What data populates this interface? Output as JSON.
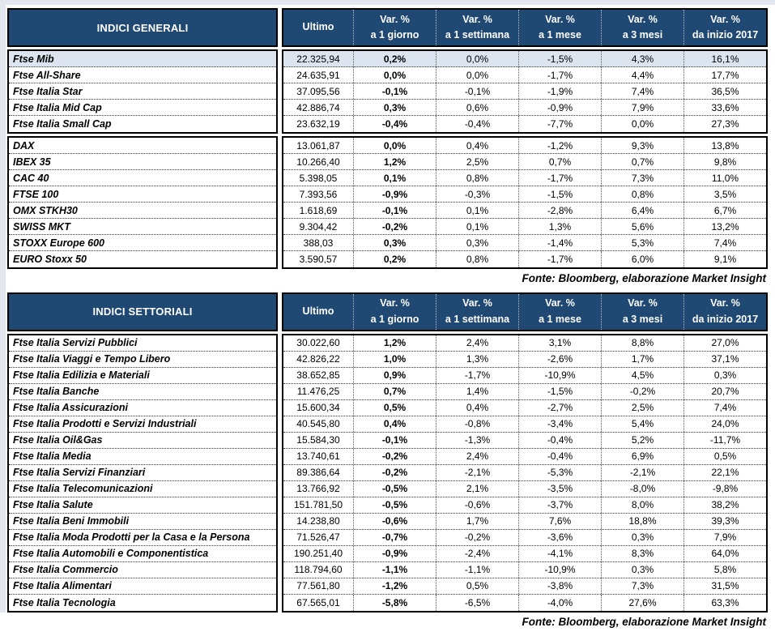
{
  "source_note": "Fonte: Bloomberg, elaborazione Market Insight",
  "columns": {
    "ultimo": "Ultimo",
    "var_prefix": "Var. %",
    "periods": [
      "a 1 giorno",
      "a 1 settimana",
      "a 1 mese",
      "a 3 mesi",
      "da inizio 2017"
    ]
  },
  "colors": {
    "header_bg": "#1F4872",
    "highlight_row": "#DCE4F0"
  },
  "tables": [
    {
      "title": "INDICI GENERALI",
      "groups": [
        {
          "rows": [
            {
              "name": "Ftse Mib",
              "highlight": true,
              "values": [
                "22.325,94",
                "0,2%",
                "0,0%",
                "-1,5%",
                "4,3%",
                "16,1%"
              ]
            },
            {
              "name": "Ftse All-Share",
              "values": [
                "24.635,91",
                "0,0%",
                "0,0%",
                "-1,7%",
                "4,4%",
                "17,7%"
              ]
            },
            {
              "name": "Ftse Italia Star",
              "values": [
                "37.095,56",
                "-0,1%",
                "-0,1%",
                "-1,9%",
                "7,4%",
                "36,5%"
              ]
            },
            {
              "name": "Ftse Italia Mid Cap",
              "values": [
                "42.886,74",
                "0,3%",
                "0,6%",
                "-0,9%",
                "7,9%",
                "33,6%"
              ]
            },
            {
              "name": "Ftse Italia Small Cap",
              "values": [
                "23.632,19",
                "-0,4%",
                "-0,4%",
                "-7,7%",
                "0,0%",
                "27,3%"
              ]
            }
          ]
        },
        {
          "rows": [
            {
              "name": "DAX",
              "values": [
                "13.061,87",
                "0,0%",
                "0,4%",
                "-1,2%",
                "9,3%",
                "13,8%"
              ]
            },
            {
              "name": "IBEX 35",
              "values": [
                "10.266,40",
                "1,2%",
                "2,5%",
                "0,7%",
                "0,7%",
                "9,8%"
              ]
            },
            {
              "name": "CAC 40",
              "values": [
                "5.398,05",
                "0,1%",
                "0,8%",
                "-1,7%",
                "7,3%",
                "11,0%"
              ]
            },
            {
              "name": "FTSE 100",
              "values": [
                "7.393,56",
                "-0,9%",
                "-0,3%",
                "-1,5%",
                "0,8%",
                "3,5%"
              ]
            },
            {
              "name": "OMX STKH30",
              "values": [
                "1.618,69",
                "-0,1%",
                "0,1%",
                "-2,8%",
                "6,4%",
                "6,7%"
              ]
            },
            {
              "name": "SWISS MKT",
              "values": [
                "9.304,42",
                "-0,2%",
                "0,1%",
                "1,3%",
                "5,6%",
                "13,2%"
              ]
            },
            {
              "name": "STOXX Europe 600",
              "values": [
                "388,03",
                "0,3%",
                "0,3%",
                "-1,4%",
                "5,3%",
                "7,4%"
              ]
            },
            {
              "name": "EURO Stoxx 50",
              "values": [
                "3.590,57",
                "0,2%",
                "0,8%",
                "-1,7%",
                "6,0%",
                "9,1%"
              ]
            }
          ]
        }
      ]
    },
    {
      "title": "INDICI SETTORIALI",
      "groups": [
        {
          "rows": [
            {
              "name": "Ftse Italia Servizi Pubblici",
              "values": [
                "30.022,60",
                "1,2%",
                "2,4%",
                "3,1%",
                "8,8%",
                "27,0%"
              ]
            },
            {
              "name": "Ftse Italia Viaggi e Tempo Libero",
              "values": [
                "42.826,22",
                "1,0%",
                "1,3%",
                "-2,6%",
                "1,7%",
                "37,1%"
              ]
            },
            {
              "name": "Ftse Italia Edilizia e Materiali",
              "values": [
                "38.652,85",
                "0,9%",
                "-1,7%",
                "-10,9%",
                "4,5%",
                "0,3%"
              ]
            },
            {
              "name": "Ftse Italia Banche",
              "values": [
                "11.476,25",
                "0,7%",
                "1,4%",
                "-1,5%",
                "-0,2%",
                "20,7%"
              ]
            },
            {
              "name": "Ftse Italia Assicurazioni",
              "values": [
                "15.600,34",
                "0,5%",
                "0,4%",
                "-2,7%",
                "2,5%",
                "7,4%"
              ]
            },
            {
              "name": "Ftse Italia Prodotti e Servizi Industriali",
              "values": [
                "40.545,80",
                "0,4%",
                "-0,8%",
                "-3,4%",
                "5,4%",
                "24,0%"
              ]
            },
            {
              "name": "Ftse Italia Oil&Gas",
              "values": [
                "15.584,30",
                "-0,1%",
                "-1,3%",
                "-0,4%",
                "5,2%",
                "-11,7%"
              ]
            },
            {
              "name": "Ftse Italia Media",
              "values": [
                "13.740,61",
                "-0,2%",
                "2,4%",
                "-0,4%",
                "6,9%",
                "0,5%"
              ]
            },
            {
              "name": "Ftse Italia Servizi Finanziari",
              "values": [
                "89.386,64",
                "-0,2%",
                "-2,1%",
                "-5,3%",
                "-2,1%",
                "22,1%"
              ]
            },
            {
              "name": "Ftse Italia Telecomunicazioni",
              "values": [
                "13.766,92",
                "-0,5%",
                "2,1%",
                "-3,5%",
                "-8,0%",
                "-9,8%"
              ]
            },
            {
              "name": "Ftse Italia Salute",
              "values": [
                "151.781,50",
                "-0,5%",
                "-0,6%",
                "-3,7%",
                "8,0%",
                "38,2%"
              ]
            },
            {
              "name": "Ftse Italia Beni Immobili",
              "values": [
                "14.238,80",
                "-0,6%",
                "1,7%",
                "7,6%",
                "18,8%",
                "39,3%"
              ]
            },
            {
              "name": "Ftse Italia Moda Prodotti per la Casa e la Persona",
              "values": [
                "71.526,47",
                "-0,7%",
                "-0,2%",
                "-3,6%",
                "0,3%",
                "7,9%"
              ]
            },
            {
              "name": "Ftse Italia Automobili e Componentistica",
              "values": [
                "190.251,40",
                "-0,9%",
                "-2,4%",
                "-4,1%",
                "8,3%",
                "64,0%"
              ]
            },
            {
              "name": "Ftse Italia Commercio",
              "values": [
                "118.794,60",
                "-1,1%",
                "-1,1%",
                "-10,9%",
                "0,3%",
                "5,8%"
              ]
            },
            {
              "name": "Ftse Italia Alimentari",
              "values": [
                "77.561,80",
                "-1,2%",
                "0,5%",
                "-3,8%",
                "7,3%",
                "31,5%"
              ]
            },
            {
              "name": "Ftse Italia Tecnologia",
              "values": [
                "67.565,01",
                "-5,8%",
                "-6,5%",
                "-4,0%",
                "27,6%",
                "63,3%"
              ]
            }
          ]
        }
      ]
    }
  ]
}
